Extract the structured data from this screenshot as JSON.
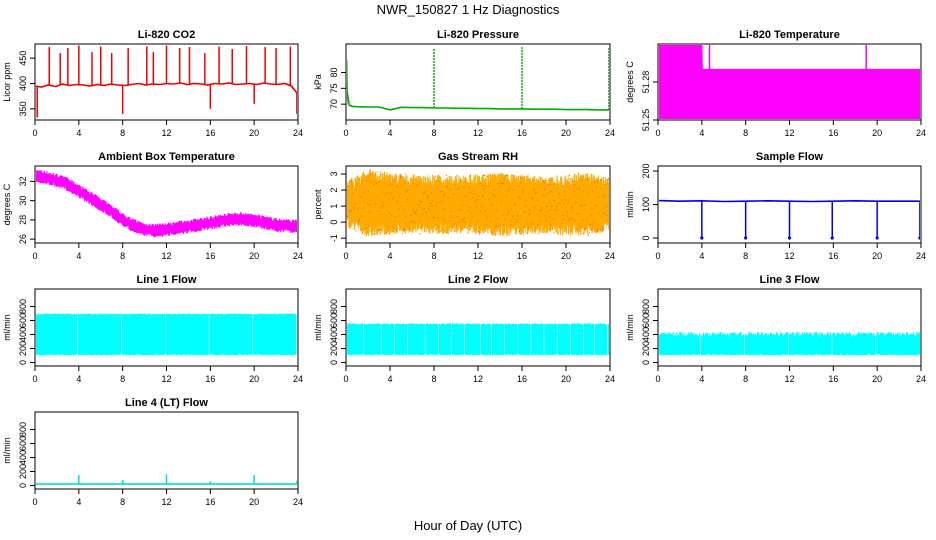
{
  "figure": {
    "title": "NWR_150827  1 Hz Diagnostics",
    "xlabel": "Hour of Day (UTC)"
  },
  "chart_data": [
    {
      "type": "line",
      "title": "Li-820 CO2",
      "ylabel": "Licor ppm",
      "xlim": [
        0,
        24
      ],
      "ylim": [
        328,
        478
      ],
      "yticks": [
        350,
        400,
        450
      ],
      "xticks": [
        0,
        4,
        8,
        12,
        16,
        20,
        24
      ],
      "color": "#ee0000",
      "series": [
        {
          "x": [
            0,
            0.6,
            1.2,
            1.9,
            2.5,
            3.1,
            3.8,
            4.4,
            5.0,
            5.7,
            6.3,
            6.9,
            7.6,
            8.2,
            8.8,
            9.5,
            10.1,
            10.7,
            11.4,
            12.0,
            12.6,
            13.3,
            13.9,
            14.5,
            15.2,
            15.8,
            16.4,
            17.1,
            17.7,
            18.3,
            19.0,
            19.6,
            20.2,
            20.9,
            21.5,
            22.1,
            22.8,
            23.4,
            24
          ],
          "y": [
            395,
            393,
            397,
            394,
            399,
            396,
            398,
            397,
            395,
            398,
            396,
            399,
            397,
            396,
            398,
            400,
            397,
            399,
            398,
            400,
            399,
            401,
            398,
            400,
            399,
            397,
            400,
            399,
            401,
            398,
            399,
            400,
            398,
            401,
            399,
            398,
            400,
            395,
            380
          ]
        }
      ],
      "spikes": {
        "x": [
          0.2,
          1.3,
          2.3,
          3.0,
          4.0,
          5.2,
          6.0,
          7.0,
          8.0,
          8.5,
          10.2,
          10.8,
          12.0,
          13.2,
          14.1,
          15.5,
          16.0,
          16.8,
          18.0,
          19.3,
          20.0,
          21.0,
          22.0,
          23.3,
          23.9
        ],
        "y": [
          333,
          472,
          460,
          470,
          475,
          462,
          473,
          460,
          340,
          470,
          473,
          462,
          475,
          470,
          472,
          460,
          350,
          473,
          468,
          474,
          360,
          472,
          470,
          473,
          340
        ]
      }
    },
    {
      "type": "line",
      "title": "Li-820 Pressure",
      "ylabel": "kPa",
      "xlim": [
        0,
        24
      ],
      "ylim": [
        65,
        89
      ],
      "yticks": [
        70,
        75,
        80
      ],
      "xticks": [
        0,
        4,
        8,
        12,
        16,
        20,
        24
      ],
      "color": "#00aa00",
      "series": [
        {
          "x": [
            0,
            0.05,
            0.1,
            0.3,
            0.6,
            1,
            2,
            3,
            4,
            5,
            6,
            7,
            8,
            9,
            10,
            11,
            12,
            13,
            14,
            15,
            16,
            17,
            18,
            19,
            20,
            21,
            22,
            23,
            24
          ],
          "y": [
            70,
            84,
            74,
            69.6,
            69.3,
            69.2,
            69.1,
            69.1,
            68.2,
            69.0,
            68.9,
            68.9,
            68.8,
            68.8,
            68.7,
            68.7,
            68.6,
            68.6,
            68.5,
            68.5,
            68.5,
            68.4,
            68.4,
            68.4,
            68.3,
            68.3,
            68.3,
            68.2,
            68.2
          ]
        }
      ],
      "spikes": {
        "x": [
          8.0,
          16.0,
          23.9
        ],
        "y": [
          87.5,
          88.0,
          88.0
        ]
      }
    },
    {
      "type": "area",
      "title": "Li-820 Temperature",
      "ylabel": "degrees C",
      "xlim": [
        0,
        24
      ],
      "ylim": [
        51.25,
        51.31
      ],
      "yticks": [
        51.25,
        51.28
      ],
      "ytick_labels": [
        "51.25",
        "51.28"
      ],
      "xticks": [
        0,
        4,
        8,
        12,
        16,
        20,
        24
      ],
      "color": "#ff00ff",
      "band": {
        "x": [
          0,
          4,
          4.05,
          24
        ],
        "low": [
          51.25,
          51.25,
          51.25,
          51.25
        ],
        "high": [
          51.31,
          51.31,
          51.29,
          51.29
        ]
      },
      "spikes": {
        "x": [
          2.7,
          3.7,
          4.7,
          19.0
        ],
        "y": [
          51.31,
          51.31,
          51.31,
          51.31
        ]
      }
    },
    {
      "type": "line",
      "title": "Ambient Box Temperature",
      "ylabel": "degrees C",
      "xlim": [
        0,
        24
      ],
      "ylim": [
        25.6,
        33.6
      ],
      "yticks": [
        26,
        28,
        30,
        32
      ],
      "xticks": [
        0,
        4,
        8,
        12,
        16,
        20,
        24
      ],
      "color": "#ff00ff",
      "noise": 0.55,
      "series": [
        {
          "x": [
            0,
            1,
            2,
            3,
            4,
            5,
            6,
            7,
            8,
            9,
            10,
            11,
            12,
            13,
            14,
            15,
            16,
            17,
            18,
            19,
            20,
            21,
            22,
            23,
            24
          ],
          "y": [
            32.6,
            32.4,
            32.1,
            31.7,
            31.0,
            30.3,
            29.6,
            28.9,
            28.0,
            27.4,
            27.0,
            26.9,
            27.0,
            27.2,
            27.3,
            27.5,
            27.7,
            27.9,
            28.1,
            28.1,
            27.9,
            27.7,
            27.5,
            27.4,
            27.3
          ]
        }
      ]
    },
    {
      "type": "line",
      "title": "Gas Stream RH",
      "ylabel": "percent",
      "xlim": [
        0,
        24
      ],
      "ylim": [
        -1.3,
        3.5
      ],
      "yticks": [
        -1,
        0,
        1,
        2,
        3
      ],
      "xticks": [
        0,
        4,
        8,
        12,
        16,
        20,
        24
      ],
      "color": "#ffaa00",
      "band": {
        "x": [
          0,
          2,
          4,
          6,
          8,
          10,
          12,
          14,
          16,
          18,
          20,
          22,
          24
        ],
        "low": [
          -0.3,
          -0.9,
          -0.8,
          -0.7,
          -0.8,
          -0.7,
          -0.8,
          -0.9,
          -0.8,
          -0.7,
          -0.9,
          -0.8,
          -0.6
        ],
        "high": [
          2.6,
          3.3,
          3.1,
          3.0,
          3.0,
          2.9,
          3.0,
          3.1,
          3.0,
          2.9,
          3.0,
          3.1,
          2.8
        ]
      }
    },
    {
      "type": "line",
      "title": "Sample Flow",
      "ylabel": "ml/min",
      "xlim": [
        0,
        24
      ],
      "ylim": [
        -15,
        215
      ],
      "yticks": [
        0,
        100,
        200
      ],
      "xticks": [
        0,
        4,
        8,
        12,
        16,
        20,
        24
      ],
      "color": "#0000ee",
      "series": [
        {
          "x": [
            0,
            2,
            4,
            6,
            8,
            10,
            12,
            14,
            16,
            18,
            20,
            22,
            24
          ],
          "y": [
            112,
            110,
            111,
            109,
            110,
            111,
            110,
            109,
            110,
            111,
            110,
            110,
            110
          ]
        }
      ],
      "dips": {
        "x": [
          4.0,
          8.0,
          12.0,
          15.9,
          20.0,
          23.9
        ],
        "y": [
          0,
          0,
          0,
          0,
          0,
          0
        ]
      }
    },
    {
      "type": "area",
      "title": "Line 1 Flow",
      "ylabel": "ml/min",
      "xlim": [
        0,
        24
      ],
      "ylim": [
        -50,
        1050
      ],
      "yticks": [
        0,
        200,
        400,
        600,
        800
      ],
      "xticks": [
        0,
        4,
        8,
        12,
        16,
        20,
        24
      ],
      "color": "#00ffff",
      "band": {
        "x": [
          0,
          24
        ],
        "low": [
          100,
          100
        ],
        "high": [
          700,
          700
        ]
      },
      "gaps": [
        3.9,
        7.9,
        11.9,
        15.9,
        19.9,
        23.9
      ]
    },
    {
      "type": "area",
      "title": "Line 2 Flow",
      "ylabel": "ml/min",
      "xlim": [
        0,
        24
      ],
      "ylim": [
        -50,
        1050
      ],
      "yticks": [
        0,
        200,
        400,
        600,
        800
      ],
      "xticks": [
        0,
        4,
        8,
        12,
        16,
        20,
        24
      ],
      "color": "#00ffff",
      "band": {
        "x": [
          0,
          24
        ],
        "low": [
          100,
          100
        ],
        "high": [
          560,
          560
        ]
      },
      "gaps": [
        1.6,
        3.2,
        4.4,
        5.6,
        7.2,
        8.4,
        9.6,
        10.8,
        12.2,
        13.2,
        14.4,
        15.6,
        16.8,
        18.0,
        19.2,
        20.4,
        21.6,
        22.6,
        23.8
      ]
    },
    {
      "type": "area",
      "title": "Line 3 Flow",
      "ylabel": "ml/min",
      "xlim": [
        0,
        24
      ],
      "ylim": [
        -50,
        1050
      ],
      "yticks": [
        0,
        200,
        400,
        600,
        800
      ],
      "xticks": [
        0,
        4,
        8,
        12,
        16,
        20,
        24
      ],
      "color": "#00ffff",
      "band": {
        "x": [
          0,
          24
        ],
        "low": [
          100,
          100
        ],
        "high": [
          440,
          440
        ]
      },
      "gaps": [
        3.9,
        7.9,
        11.9,
        15.9,
        19.9
      ]
    },
    {
      "type": "line",
      "title": "Line 4 (LT) Flow",
      "ylabel": "ml/min",
      "xlim": [
        0,
        24
      ],
      "ylim": [
        -50,
        1050
      ],
      "yticks": [
        0,
        200,
        400,
        600,
        800
      ],
      "xticks": [
        0,
        4,
        8,
        12,
        16,
        20,
        24
      ],
      "color": "#00dddd",
      "series": [
        {
          "x": [
            0,
            24
          ],
          "y": [
            20,
            20
          ]
        }
      ],
      "spikes": {
        "x": [
          4.0,
          8.0,
          12.0,
          16.0,
          20.0,
          23.9
        ],
        "y": [
          150,
          80,
          160,
          60,
          150,
          70
        ]
      }
    }
  ]
}
